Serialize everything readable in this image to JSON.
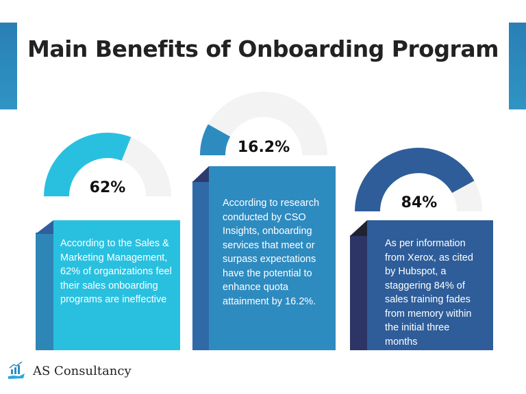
{
  "title": "Main Benefits of Onboarding Program",
  "cards": [
    {
      "percent_label": "62%",
      "value": 62,
      "text": "According to the Sales & Marketing Management, 62% of organizations feel their sales onboarding programs are ineffective",
      "color": "#29c0e0",
      "strip": "#2d86b6",
      "fold": "#2f5f9e"
    },
    {
      "percent_label": "16.2%",
      "value": 16.2,
      "text": "According to research conducted by CSO Insights, onboarding services that meet or surpass expectations have the potential to enhance quota attainment by 16.2%.",
      "color": "#2e8bc0",
      "strip": "#2f6aa6",
      "fold": "#2c3a6e"
    },
    {
      "percent_label": "84%",
      "value": 84,
      "text": "As per information from Xerox, as cited by Hubspot, a staggering 84% of sales training fades from memory within the initial three months",
      "color": "#2e5d99",
      "strip": "#2c3566",
      "fold": "#1f2233"
    }
  ],
  "track_color": "#f3f3f3",
  "brand": {
    "name": "AS Consultancy",
    "icon": "chart-hand-icon"
  }
}
